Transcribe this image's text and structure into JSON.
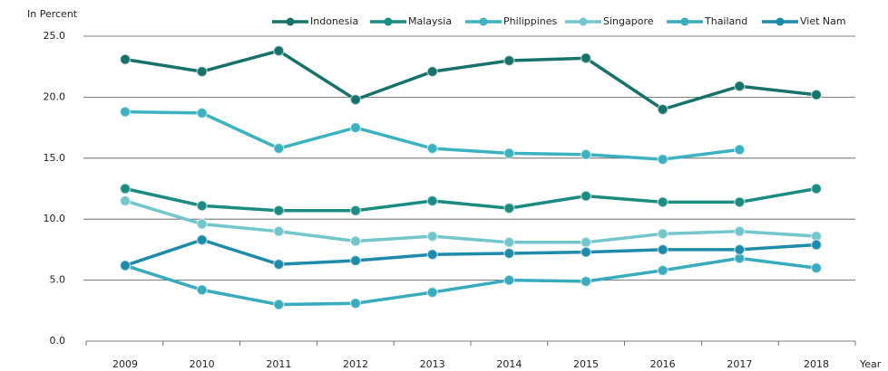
{
  "chart_data": {
    "type": "line",
    "y_axis_label": "In Percent",
    "x_axis_label": "Year",
    "categories": [
      "2009",
      "2010",
      "2011",
      "2012",
      "2013",
      "2014",
      "2015",
      "2016",
      "2017",
      "2018"
    ],
    "ylim": [
      0,
      25
    ],
    "yticks": [
      {
        "value": 0,
        "label": "0.0"
      },
      {
        "value": 5,
        "label": "5.0"
      },
      {
        "value": 10,
        "label": "10.0"
      },
      {
        "value": 15,
        "label": "15.0"
      },
      {
        "value": 20,
        "label": "20.0"
      },
      {
        "value": 25,
        "label": "25.0"
      }
    ],
    "grid": true,
    "legend": "top",
    "series": [
      {
        "name": "Indonesia",
        "color": "#17726b",
        "values": [
          23.1,
          22.1,
          23.8,
          19.8,
          22.1,
          23.0,
          23.2,
          19.0,
          20.9,
          20.2
        ]
      },
      {
        "name": "Malaysia",
        "color": "#1b8c82",
        "values": [
          12.5,
          11.1,
          10.7,
          10.7,
          11.5,
          10.9,
          11.9,
          11.4,
          11.4,
          12.5
        ]
      },
      {
        "name": "Philippines",
        "color": "#3bb2bf",
        "values": [
          18.8,
          18.7,
          15.8,
          17.5,
          15.8,
          15.4,
          15.3,
          14.9,
          15.7,
          null
        ]
      },
      {
        "name": "Singapore",
        "color": "#72c6cc",
        "values": [
          11.5,
          9.6,
          9.0,
          8.2,
          8.6,
          8.1,
          8.1,
          8.8,
          9.0,
          8.6
        ]
      },
      {
        "name": "Thailand",
        "color": "#38abbd",
        "values": [
          6.2,
          4.2,
          3.0,
          3.1,
          4.0,
          5.0,
          4.9,
          5.8,
          6.8,
          6.0
        ]
      },
      {
        "name": "Viet Nam",
        "color": "#1f8bab",
        "values": [
          6.2,
          8.3,
          6.3,
          6.6,
          7.1,
          7.2,
          7.3,
          7.5,
          7.5,
          7.9
        ]
      }
    ]
  }
}
